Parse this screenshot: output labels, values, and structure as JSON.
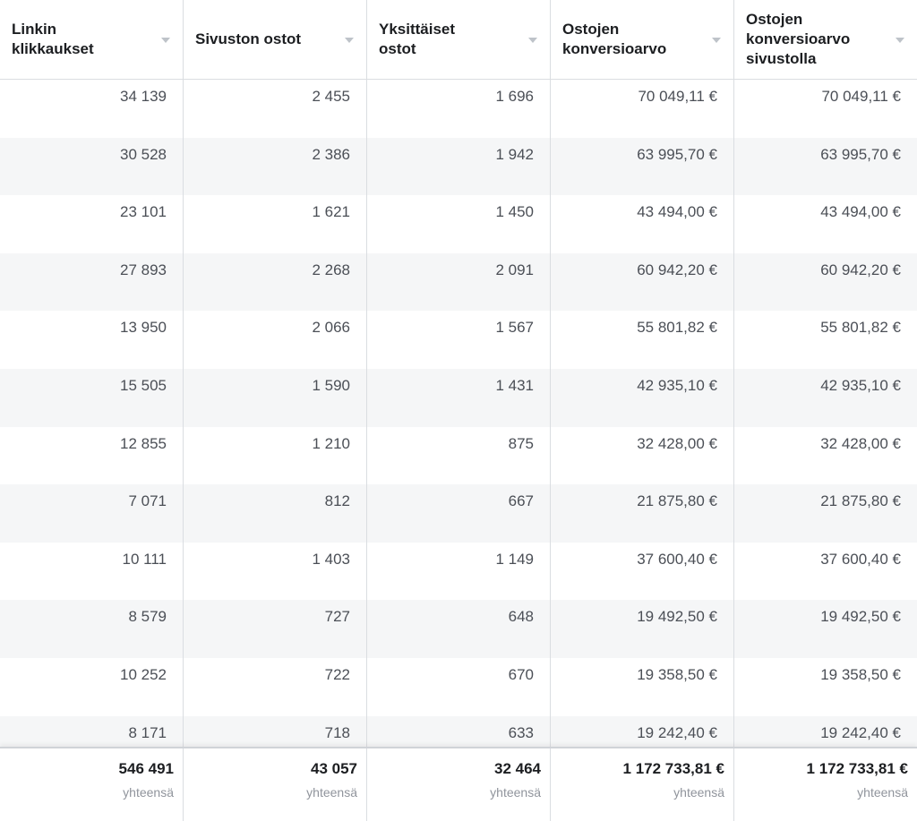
{
  "columns": [
    {
      "label": "Linkin\nklikkaukset"
    },
    {
      "label": "Sivuston ostot"
    },
    {
      "label": "Yksittäiset\nostot"
    },
    {
      "label": "Ostojen\nkonversioarvo"
    },
    {
      "label": "Ostojen\nkonversioarvo\nsivustolla"
    }
  ],
  "rows": [
    [
      "34 139",
      "2 455",
      "1 696",
      "70 049,11 €",
      "70 049,11 €"
    ],
    [
      "30 528",
      "2 386",
      "1 942",
      "63 995,70 €",
      "63 995,70 €"
    ],
    [
      "23 101",
      "1 621",
      "1 450",
      "43 494,00 €",
      "43 494,00 €"
    ],
    [
      "27 893",
      "2 268",
      "2 091",
      "60 942,20 €",
      "60 942,20 €"
    ],
    [
      "13 950",
      "2 066",
      "1 567",
      "55 801,82 €",
      "55 801,82 €"
    ],
    [
      "15 505",
      "1 590",
      "1 431",
      "42 935,10 €",
      "42 935,10 €"
    ],
    [
      "12 855",
      "1 210",
      "875",
      "32 428,00 €",
      "32 428,00 €"
    ],
    [
      "7 071",
      "812",
      "667",
      "21 875,80 €",
      "21 875,80 €"
    ],
    [
      "10 111",
      "1 403",
      "1 149",
      "37 600,40 €",
      "37 600,40 €"
    ],
    [
      "8 579",
      "727",
      "648",
      "19 492,50 €",
      "19 492,50 €"
    ],
    [
      "10 252",
      "722",
      "670",
      "19 358,50 €",
      "19 358,50 €"
    ],
    [
      "8 171",
      "718",
      "633",
      "19 242,40 €",
      "19 242,40 €"
    ]
  ],
  "totals": [
    {
      "value": "546 491",
      "label": "yhteensä"
    },
    {
      "value": "43 057",
      "label": "yhteensä"
    },
    {
      "value": "32 464",
      "label": "yhteensä"
    },
    {
      "value": "1 172 733,81 €",
      "label": "yhteensä"
    },
    {
      "value": "1 172 733,81 €",
      "label": "yhteensä"
    }
  ],
  "icons": {
    "sort": "sort-caret-down-icon"
  },
  "colors": {
    "stripe": "#f5f6f7",
    "border": "#dadde1",
    "muted_text": "#90949c"
  }
}
